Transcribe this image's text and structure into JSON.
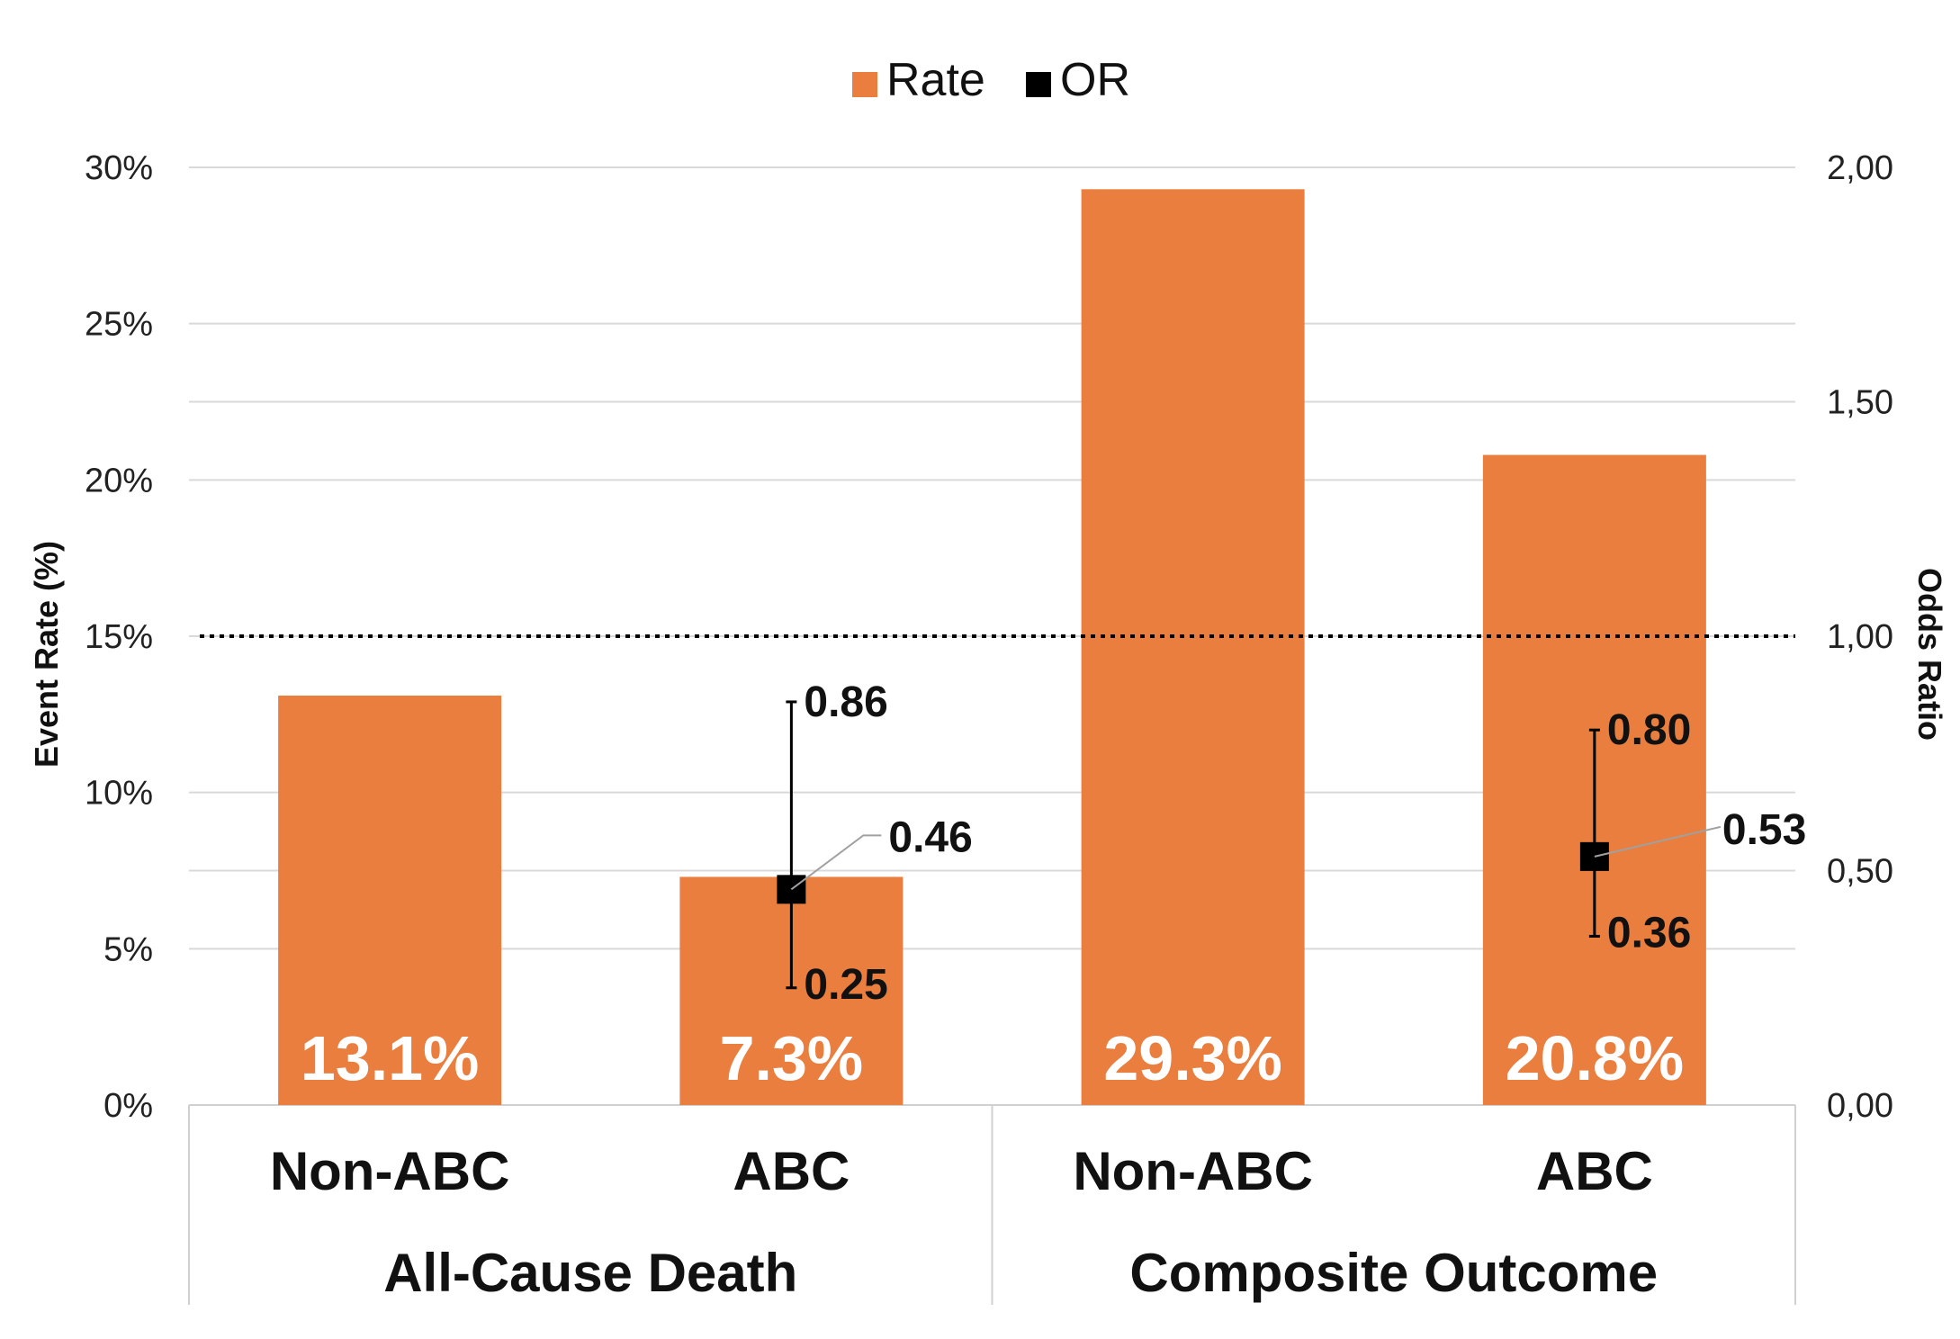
{
  "chart_data": {
    "type": "bar",
    "title": "",
    "legend": {
      "position": "top-center",
      "entries": [
        {
          "name": "Rate",
          "color": "#E97E3E",
          "marker": "square"
        },
        {
          "name": "OR",
          "color": "#000000",
          "marker": "square"
        }
      ]
    },
    "groups": [
      {
        "name": "All-Cause Death",
        "categories": [
          "Non-ABC",
          "ABC"
        ]
      },
      {
        "name": "Composite Outcome",
        "categories": [
          "Non-ABC",
          "ABC"
        ]
      }
    ],
    "categories": [
      "Non-ABC",
      "ABC",
      "Non-ABC",
      "ABC"
    ],
    "series": [
      {
        "name": "Rate",
        "axis": "left",
        "color": "#E97E3E",
        "values": [
          13.1,
          7.3,
          29.3,
          20.8
        ],
        "data_labels": [
          "13.1%",
          "7.3%",
          "29.3%",
          "20.8%"
        ]
      },
      {
        "name": "OR",
        "axis": "right",
        "color": "#000000",
        "points": [
          {
            "category_index": 1,
            "value": 0.46,
            "lower": 0.25,
            "upper": 0.86,
            "value_label": "0.46",
            "lower_label": "0.25",
            "upper_label": "0.86"
          },
          {
            "category_index": 3,
            "value": 0.53,
            "lower": 0.36,
            "upper": 0.8,
            "value_label": "0.53",
            "lower_label": "0.36",
            "upper_label": "0.80"
          }
        ]
      }
    ],
    "y_left": {
      "label": "Event Rate (%)",
      "ylim": [
        0,
        30
      ],
      "ticks": [
        0,
        5,
        10,
        15,
        20,
        25,
        30
      ],
      "tick_labels": [
        "0%",
        "5%",
        "10%",
        "15%",
        "20%",
        "25%",
        "30%"
      ]
    },
    "y_right": {
      "label": "Odds Ratio",
      "ylim": [
        0,
        2
      ],
      "ticks": [
        0,
        0.5,
        1,
        1.5,
        2
      ],
      "tick_labels": [
        "0,00",
        "0,50",
        "1,00",
        "1,50",
        "2,00"
      ]
    },
    "reference_line": {
      "axis": "right",
      "value": 1.0,
      "style": "dotted"
    },
    "grid": true
  }
}
